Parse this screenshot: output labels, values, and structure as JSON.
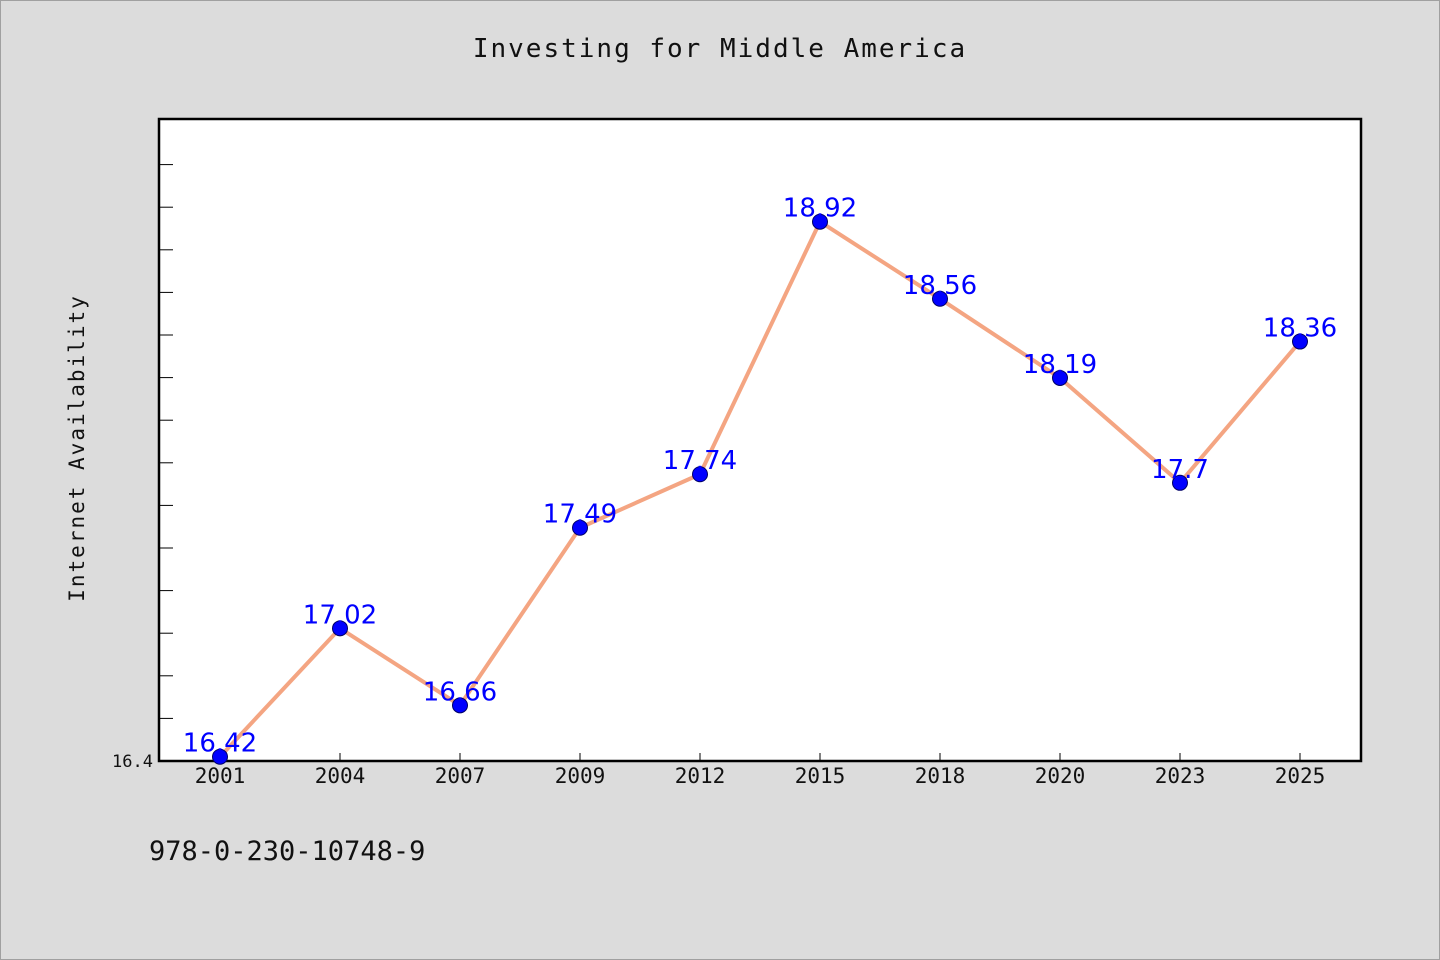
{
  "chart_data": {
    "type": "line",
    "title": "Investing for Middle America",
    "ylabel": "Internet Availability",
    "xlabel": "",
    "x": [
      "2001",
      "2004",
      "2007",
      "2009",
      "2012",
      "2015",
      "2018",
      "2020",
      "2023",
      "2025"
    ],
    "series": [
      {
        "values": [
          16.42,
          17.02,
          16.66,
          17.49,
          17.74,
          18.92,
          18.56,
          18.19,
          17.7,
          18.36
        ],
        "data_labels": [
          "16.42",
          "17.02",
          "16.66",
          "17.49",
          "17.74",
          "18.92",
          "18.56",
          "18.19",
          "17.7",
          "18.36"
        ],
        "line_color": "#f4a582",
        "marker_color": "#0000ff"
      }
    ],
    "y_tick_labels": [
      "16.4"
    ],
    "ylim": [
      16.4,
      19.4
    ],
    "grid": false,
    "legend": "none"
  },
  "footer": {
    "isbn": "978-0-230-10748-9"
  },
  "colors": {
    "background": "#dcdcdc",
    "plot_background": "#ffffff",
    "line": "#f4a582",
    "marker": "#0000ff",
    "data_label": "#0000ff"
  }
}
